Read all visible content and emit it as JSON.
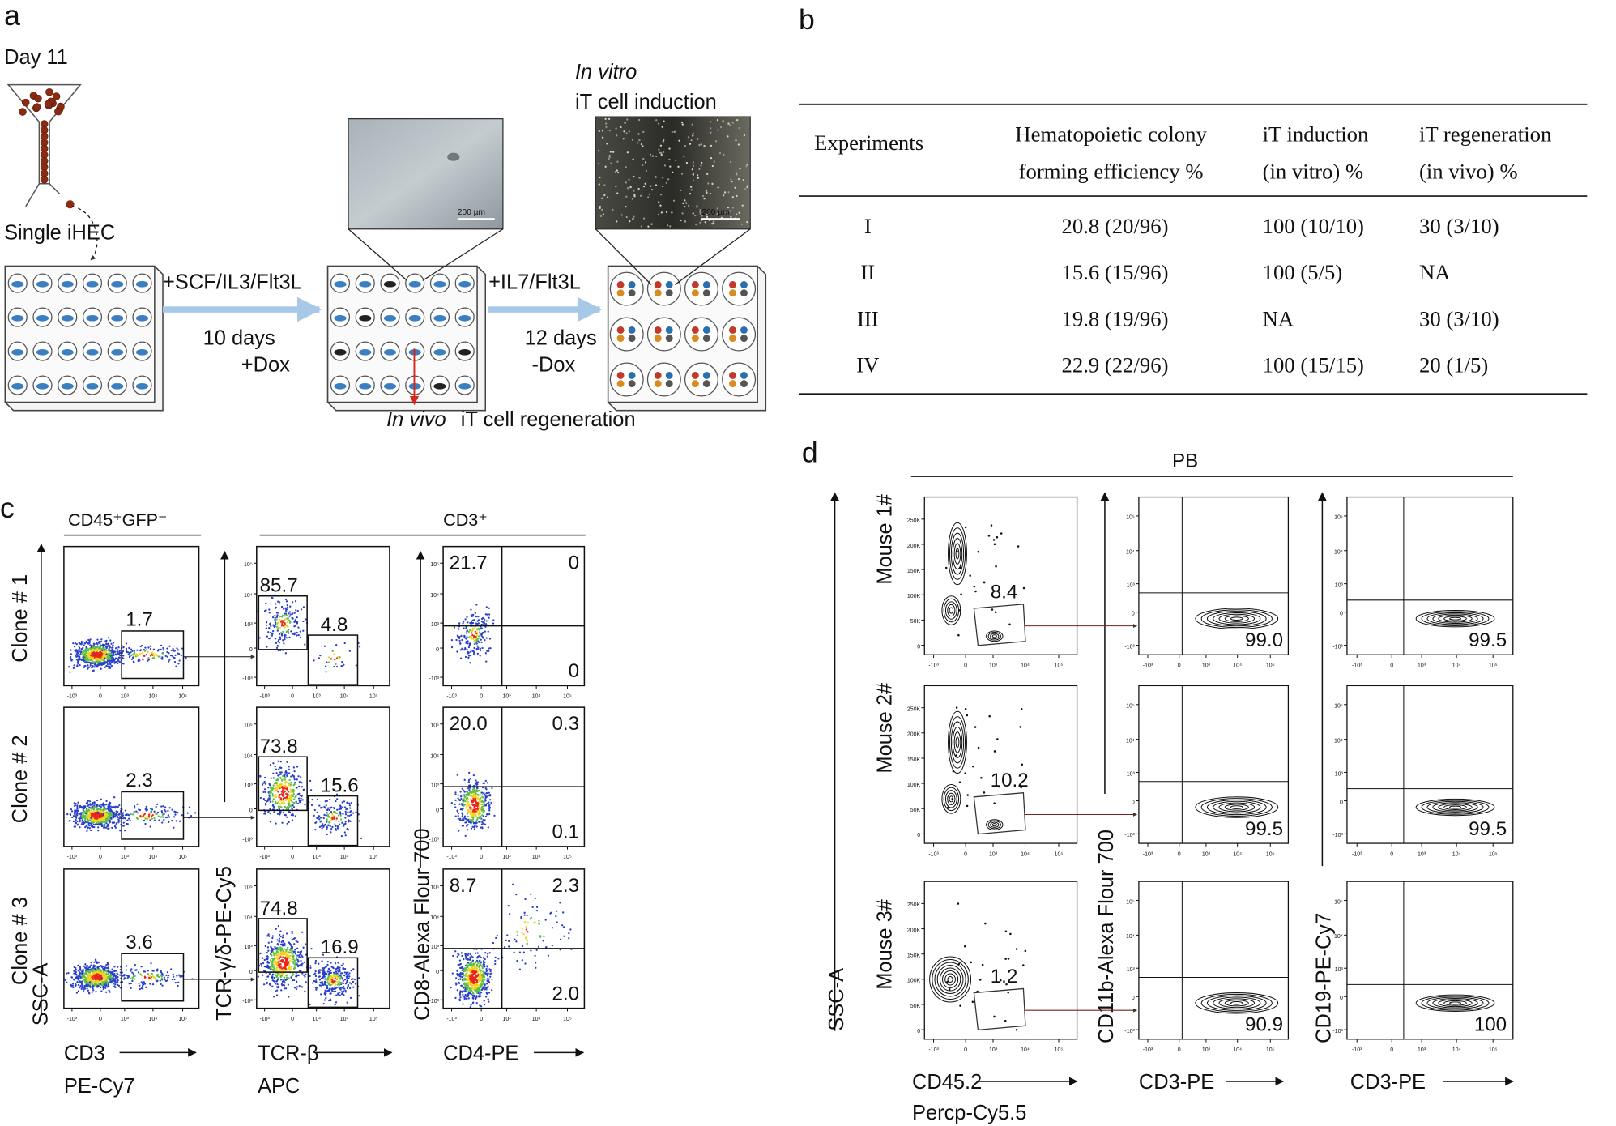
{
  "panel_a": {
    "label": "a",
    "day": "Day 11",
    "single": "Single iHEC",
    "step1": "+SCF/IL3/Flt3L",
    "step1_time": "10 days",
    "step1_dox": "+Dox",
    "step2": "+IL7/Flt3L",
    "step2_time": "12 days",
    "step2_dox": "-Dox",
    "invitro_italic": "In vitro",
    "invitro_rest": "iT cell induction",
    "invivo_italic": "In vivo",
    "invivo_rest": "iT cell regeneration",
    "scale_bars": [
      "200 µm",
      "200 µm"
    ]
  },
  "panel_b": {
    "label": "b",
    "table": {
      "header": [
        [
          "Experiments"
        ],
        [
          "Hematopoietic colony",
          "forming efficiency %"
        ],
        [
          "iT  induction",
          "(in vitro) %"
        ],
        [
          "iT regeneration",
          "(in vivo) %"
        ]
      ],
      "rows": [
        [
          "I",
          "20.8 (20/96)",
          "100 (10/10)",
          "30 (3/10)"
        ],
        [
          "II",
          "15.6 (15/96)",
          "100 (5/5)",
          "NA"
        ],
        [
          "III",
          "19.8 (19/96)",
          "NA",
          "30 (3/10)"
        ],
        [
          "IV",
          "22.9 (22/96)",
          "100 (15/15)",
          "20 (1/5)"
        ]
      ]
    }
  },
  "panel_c": {
    "label": "c",
    "group_left": "CD45⁺GFP⁻",
    "group_right": "CD3⁺",
    "rows": [
      "Clone # 1",
      "Clone # 2",
      "Clone # 3"
    ],
    "y_axis": "SSC-A",
    "x1": [
      "CD3",
      "PE-Cy7"
    ],
    "y2": "TCR-γ/δ-PE-Cy5",
    "x2": [
      "TCR-β",
      "APC"
    ],
    "y3": "CD8-Alexa Flour 700",
    "x3": "CD4-PE",
    "gate_cd3": [
      "1.7",
      "2.3",
      "3.6"
    ],
    "gate_tcr": [
      [
        "85.7",
        "4.8"
      ],
      [
        "73.8",
        "15.6"
      ],
      [
        "74.8",
        "16.9"
      ]
    ],
    "quadrants": [
      [
        "21.7",
        "0",
        "0"
      ],
      [
        "20.0",
        "0.3",
        "0.1"
      ],
      [
        "8.7",
        "2.3",
        "2.0"
      ]
    ]
  },
  "panel_d": {
    "label": "d",
    "group": "PB",
    "rows": [
      "Mouse 1#",
      "Mouse 2#",
      "Mouse 3#"
    ],
    "y_axis": "SSC-A",
    "x1": [
      "CD45.2",
      "Percp-Cy5.5"
    ],
    "y2": "CD11b-Alexa Flour 700",
    "x2": "CD3-PE",
    "y3": "CD19-PE-Cy7",
    "x3": "CD3-PE",
    "gates": [
      [
        "8.4",
        "99.0",
        "99.5"
      ],
      [
        "10.2",
        "99.5",
        "99.5"
      ],
      [
        "1.2",
        "90.9",
        "100"
      ]
    ]
  },
  "ticks": {
    "log": [
      "-10³",
      "0",
      "10³",
      "10⁴",
      "10⁵"
    ],
    "ssc": [
      "0",
      "50K",
      "100K",
      "150K",
      "200K",
      "250K"
    ]
  }
}
